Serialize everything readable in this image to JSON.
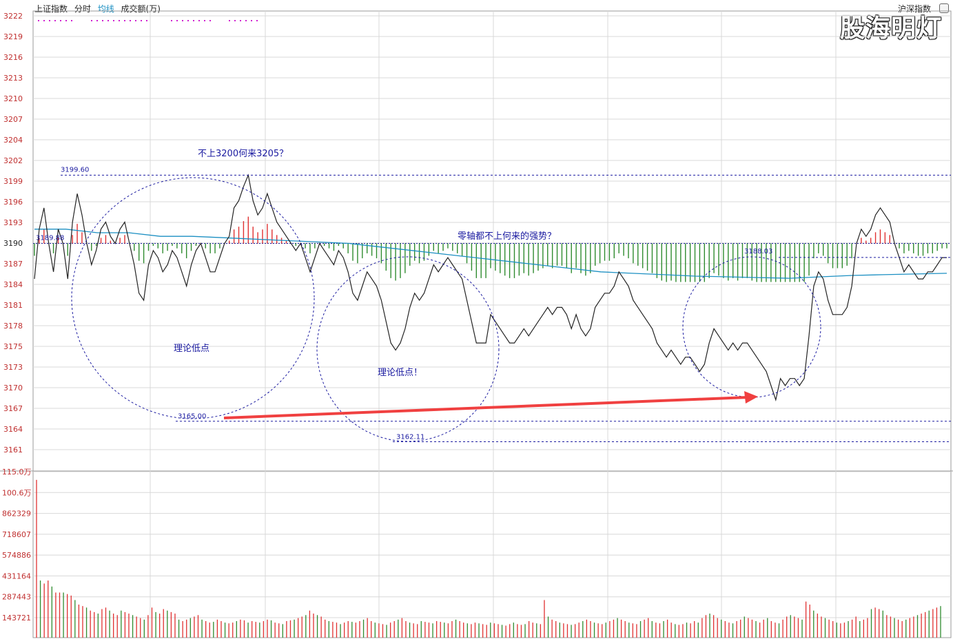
{
  "header": {
    "index_name": "上证指数",
    "mode": "分时",
    "avg_line": "均线",
    "volume_label": "成交额(万)",
    "right_label": "沪深指数"
  },
  "watermark": "股海明灯",
  "colors": {
    "price_line": "#222222",
    "avg_line": "#1b8fc2",
    "up": "#e03030",
    "down": "#2e8b2e",
    "annotation": "#1a1aa0",
    "arrow": "#f04040",
    "axis_label": "#c03030",
    "grid": "#d8d8d8"
  },
  "chart_data": [
    {
      "type": "line",
      "title": "",
      "y_ticks": [
        "3222",
        "3219",
        "3216",
        "3213",
        "3210",
        "3207",
        "3204",
        "3202",
        "3199",
        "3196",
        "3193",
        "3190",
        "3187",
        "3184",
        "3181",
        "3178",
        "3175",
        "3173",
        "3170",
        "3167",
        "3164",
        "3161"
      ],
      "ylim": [
        3159.5,
        3223
      ],
      "base_value": 3190.0,
      "x_minutes": 240,
      "price_series": [
        3185,
        3192,
        3195,
        3190,
        3186,
        3192,
        3190,
        3185,
        3193,
        3197,
        3194,
        3190,
        3187,
        3189,
        3192,
        3193,
        3191,
        3190,
        3192,
        3193,
        3190,
        3187,
        3183,
        3182,
        3187,
        3189,
        3188,
        3186,
        3187,
        3189,
        3188,
        3186,
        3184,
        3187,
        3189,
        3190,
        3188,
        3186,
        3186,
        3188,
        3190,
        3191,
        3195,
        3196,
        3198,
        3199.6,
        3196,
        3194,
        3195,
        3197,
        3195,
        3193,
        3192,
        3191,
        3190,
        3189,
        3190,
        3188,
        3186,
        3188,
        3190,
        3189,
        3188,
        3187,
        3189,
        3188,
        3186,
        3183,
        3182,
        3184,
        3186,
        3185,
        3184,
        3182,
        3179,
        3176,
        3175,
        3176,
        3178,
        3181,
        3183,
        3182,
        3183,
        3185,
        3187,
        3186,
        3187,
        3188,
        3187,
        3186,
        3185,
        3182,
        3179,
        3176,
        3176,
        3176,
        3180,
        3179,
        3178,
        3177,
        3176,
        3176,
        3177,
        3178,
        3177,
        3178,
        3179,
        3180,
        3181,
        3180,
        3181,
        3181,
        3180,
        3178,
        3180,
        3178,
        3177,
        3178,
        3181,
        3182,
        3183,
        3183,
        3184,
        3186,
        3185,
        3184,
        3182,
        3181,
        3180,
        3179,
        3178,
        3176,
        3175,
        3174,
        3175,
        3174,
        3173,
        3174,
        3174,
        3173,
        3172,
        3173,
        3176,
        3178,
        3177,
        3176,
        3175,
        3176,
        3175,
        3176,
        3176,
        3175,
        3174,
        3173,
        3172,
        3170,
        3168,
        3171,
        3170,
        3171,
        3171,
        3170,
        3171,
        3177,
        3184,
        3186,
        3185,
        3182,
        3180,
        3180,
        3180,
        3181,
        3184,
        3190,
        3192,
        3191,
        3192,
        3194,
        3195,
        3194,
        3193,
        3190,
        3188,
        3186,
        3187,
        3186,
        3185,
        3185,
        3186,
        3186,
        3187,
        3188,
        3188
      ],
      "avg_series": [
        3192,
        3192,
        3191.5,
        3191.5,
        3191,
        3191,
        3190.8,
        3190.6,
        3190.4,
        3190.2,
        3190,
        3189.5,
        3189,
        3188.5,
        3188,
        3187.5,
        3187,
        3186.5,
        3186,
        3185.8,
        3185.6,
        3185.4,
        3185.3,
        3185.2,
        3185.1,
        3185.3,
        3185.5,
        3185.6,
        3185.7,
        3185.8
      ],
      "volume_bars": [
        {
          "v": 0.1,
          "d": 1
        },
        {
          "v": 0.6,
          "d": 1
        },
        {
          "v": 0.3,
          "d": -1
        },
        {
          "v": 0.45,
          "d": 1
        },
        {
          "v": 0.2,
          "d": -1
        },
        {
          "v": 0.35,
          "d": -1
        },
        {
          "v": 0.55,
          "d": -1
        },
        {
          "v": 0.25,
          "d": 1
        },
        {
          "v": 0.4,
          "d": 1
        },
        {
          "v": 0.5,
          "d": -1
        },
        {
          "v": 0.3,
          "d": 1
        },
        {
          "v": 0.2,
          "d": -1
        },
        {
          "v": 0.5,
          "d": -1
        },
        {
          "v": 0.6,
          "d": 1
        },
        {
          "v": 0.3,
          "d": 1
        }
      ],
      "labels": {
        "high_value": "3199.60",
        "base_left": "3189.88",
        "right_level": "3188.03",
        "low_1": "3165.00",
        "low_2": "3162.11"
      },
      "annotations": {
        "top_note": "不上3200何来3205？",
        "mid_note": "零轴都不上何来的强势？",
        "circle1": "理论低点",
        "circle2": "理论低点！"
      }
    },
    {
      "type": "bar",
      "title": "成交额(万)",
      "y_ticks": [
        "115.0万",
        "100.6万",
        "862329",
        "718607",
        "574886",
        "431164",
        "287443",
        "143721"
      ],
      "ylim": [
        0,
        1150000
      ],
      "values": [
        1050000,
        380000,
        360000,
        380000,
        340000,
        300000,
        300000,
        300000,
        290000,
        280000,
        250000,
        220000,
        210000,
        200000,
        180000,
        170000,
        160000,
        190000,
        200000,
        180000,
        160000,
        150000,
        180000,
        170000,
        160000,
        150000,
        140000,
        130000,
        120000,
        150000,
        200000,
        170000,
        160000,
        190000,
        180000,
        170000,
        160000,
        120000,
        110000,
        120000,
        130000,
        140000,
        150000,
        120000,
        110000,
        100000,
        105000,
        120000,
        110000,
        100000,
        95000,
        100000,
        110000,
        120000,
        115000,
        100000,
        110000,
        105000,
        100000,
        110000,
        120000,
        115000,
        100000,
        95000,
        90000,
        110000,
        115000,
        120000,
        130000,
        140000,
        150000,
        180000,
        160000,
        150000,
        140000,
        120000,
        110000,
        105000,
        100000,
        90000,
        100000,
        110000,
        105000,
        100000,
        110000,
        120000,
        130000,
        110000,
        100000,
        95000,
        90000,
        85000,
        100000,
        110000,
        120000,
        130000,
        110000,
        100000,
        95000,
        90000,
        110000,
        105000,
        100000,
        95000,
        110000,
        105000,
        100000,
        95000,
        110000,
        120000,
        110000,
        100000,
        95000,
        90000,
        100000,
        95000,
        90000,
        85000,
        100000,
        95000,
        90000,
        85000,
        80000,
        90000,
        100000,
        90000,
        85000,
        90000,
        110000,
        100000,
        95000,
        90000,
        250000,
        140000,
        120000,
        110000,
        100000,
        95000,
        90000,
        85000,
        90000,
        100000,
        110000,
        120000,
        110000,
        100000,
        95000,
        90000,
        100000,
        110000,
        120000,
        130000,
        120000,
        110000,
        100000,
        95000,
        90000,
        110000,
        120000,
        130000,
        110000,
        100000,
        95000,
        110000,
        120000,
        100000,
        90000,
        85000,
        90000,
        100000,
        95000,
        110000,
        100000,
        130000,
        150000,
        160000,
        150000,
        130000,
        120000,
        110000,
        100000,
        95000,
        110000,
        120000,
        140000,
        130000,
        120000,
        110000,
        100000,
        120000,
        130000,
        110000,
        100000,
        95000,
        120000,
        140000,
        150000,
        140000,
        130000,
        120000,
        240000,
        220000,
        180000,
        160000,
        140000,
        130000,
        120000,
        110000,
        100000,
        95000,
        100000,
        110000,
        120000,
        140000,
        110000,
        120000,
        130000,
        190000,
        200000,
        190000,
        180000,
        150000,
        140000,
        130000,
        120000,
        110000,
        120000,
        130000,
        140000,
        150000,
        160000,
        170000,
        180000,
        190000,
        200000,
        210000
      ]
    }
  ]
}
